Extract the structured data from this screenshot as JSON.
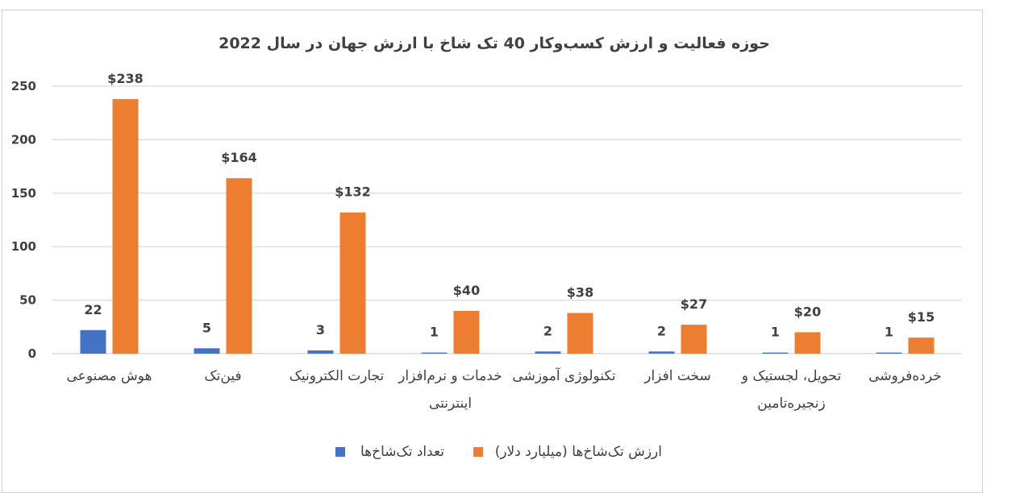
{
  "chart_data": {
    "type": "bar",
    "title": "حوزه فعالیت و ارزش کسب‌وکار 40 تک شاخ با ارزش جهان در سال 2022",
    "categories": [
      [
        "هوش مصنوعی"
      ],
      [
        "فین‌تک"
      ],
      [
        "تجارت الکترونیک"
      ],
      [
        "خدمات و نرم‌افزار",
        "اینترنتی"
      ],
      [
        "تکنولوژی آموزشی"
      ],
      [
        "سخت افزار"
      ],
      [
        "تحویل، لجستیک و",
        "زنجیره‌تامین"
      ],
      [
        "خرده‌فروشی"
      ]
    ],
    "series": [
      {
        "name": "تعداد تک‌شاخ‌ها",
        "color": "#4472c4",
        "values": [
          22,
          5,
          3,
          1,
          2,
          2,
          1,
          1
        ],
        "labels": [
          "22",
          "5",
          "3",
          "1",
          "2",
          "2",
          "1",
          "1"
        ]
      },
      {
        "name": "ارزش تک‌شاخ‌ها (میلیارد دلار)",
        "color": "#ed7d31",
        "values": [
          238,
          164,
          132,
          40,
          38,
          27,
          20,
          15
        ],
        "labels": [
          "$238",
          "$164",
          "$132",
          "$40",
          "$38",
          "$27",
          "$20",
          "$15"
        ]
      }
    ],
    "ylim": [
      0,
      250
    ],
    "yticks": [
      "0",
      "50",
      "100",
      "150",
      "200",
      "250"
    ],
    "grid": true,
    "legend": "bottom"
  }
}
